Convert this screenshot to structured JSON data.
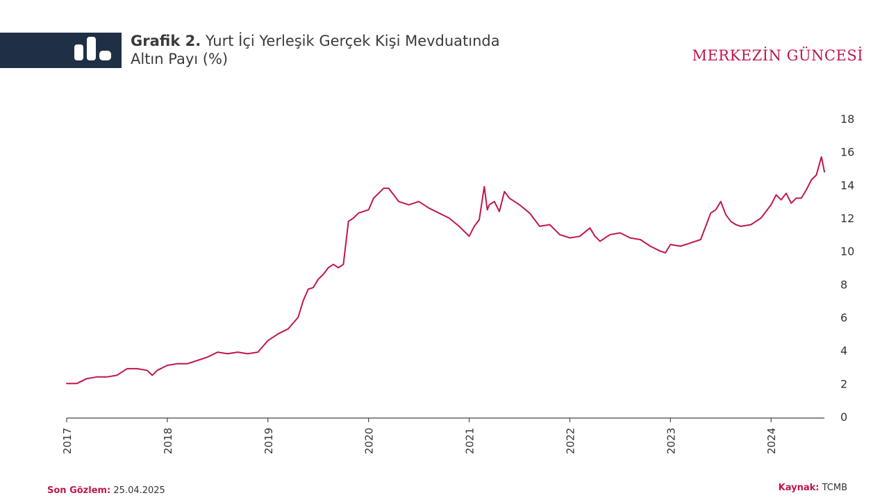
{
  "header": {
    "title_bold": "Grafik 2.",
    "title_line1": " Yurt İçi Yerleşik Gerçek Kişi Mevduatında",
    "title_line2": "Altın Payı (%)",
    "brand": "MERKEZİN GÜNCESİ",
    "icon": "bar-chart-icon",
    "bar_color": "#1f3044",
    "brand_color": "#c0164a"
  },
  "footer": {
    "last_obs_label": "Son Gözlem:",
    "last_obs_value": " 25.04.2025",
    "source_label": "Kaynak:",
    "source_value": " TCMB"
  },
  "chart_data": {
    "type": "line",
    "title": "Yurt İçi Yerleşik Gerçek Kişi Mevduatında Altın Payı (%)",
    "xlabel": "",
    "ylabel": "",
    "x_ticks": [
      "2017",
      "2018",
      "2019",
      "2020",
      "2021",
      "2022",
      "2023",
      "2024"
    ],
    "y_ticks": [
      "0",
      "2",
      "4",
      "6",
      "8",
      "10",
      "12",
      "14",
      "16",
      "18"
    ],
    "ylim": [
      0,
      18
    ],
    "xlim": [
      2017.0,
      2024.53
    ],
    "line_color": "#c0164a",
    "grid": false,
    "y_axis_side": "right",
    "series": [
      {
        "x": [
          2017.0,
          2017.1,
          2017.2,
          2017.3,
          2017.4,
          2017.5,
          2017.6,
          2017.7,
          2017.8,
          2017.85,
          2017.9,
          2018.0,
          2018.1,
          2018.2,
          2018.3,
          2018.4,
          2018.5,
          2018.6,
          2018.7,
          2018.8,
          2018.9,
          2019.0,
          2019.1,
          2019.2,
          2019.3,
          2019.35,
          2019.4,
          2019.45,
          2019.5,
          2019.55,
          2019.6,
          2019.65,
          2019.7,
          2019.75,
          2019.8,
          2019.85,
          2019.9,
          2020.0,
          2020.05,
          2020.1,
          2020.15,
          2020.2,
          2020.25,
          2020.3,
          2020.4,
          2020.5,
          2020.6,
          2020.7,
          2020.8,
          2020.9,
          2021.0,
          2021.05,
          2021.1,
          2021.15,
          2021.18,
          2021.2,
          2021.25,
          2021.3,
          2021.35,
          2021.4,
          2021.5,
          2021.6,
          2021.7,
          2021.8,
          2021.9,
          2022.0,
          2022.1,
          2022.2,
          2022.25,
          2022.3,
          2022.4,
          2022.5,
          2022.6,
          2022.7,
          2022.8,
          2022.9,
          2022.95,
          2023.0,
          2023.1,
          2023.2,
          2023.3,
          2023.4,
          2023.45,
          2023.5,
          2023.55,
          2023.6,
          2023.65,
          2023.7,
          2023.8,
          2023.9,
          2024.0,
          2024.05,
          2024.1,
          2024.15,
          2024.2,
          2024.25,
          2024.3,
          2024.35,
          2024.4,
          2024.45,
          2024.5,
          2024.53
        ],
        "values": [
          2.0,
          2.0,
          2.3,
          2.4,
          2.4,
          2.5,
          2.9,
          2.9,
          2.8,
          2.5,
          2.8,
          3.1,
          3.2,
          3.2,
          3.4,
          3.6,
          3.9,
          3.8,
          3.9,
          3.8,
          3.9,
          4.6,
          5.0,
          5.3,
          6.0,
          7.0,
          7.7,
          7.8,
          8.3,
          8.6,
          9.0,
          9.2,
          9.0,
          9.2,
          11.8,
          12.0,
          12.3,
          12.5,
          13.2,
          13.5,
          13.8,
          13.8,
          13.4,
          13.0,
          12.8,
          13.0,
          12.6,
          12.3,
          12.0,
          11.5,
          10.9,
          11.5,
          11.9,
          13.9,
          12.5,
          12.8,
          13.0,
          12.4,
          13.6,
          13.2,
          12.8,
          12.3,
          11.5,
          11.6,
          11.0,
          10.8,
          10.9,
          11.4,
          10.9,
          10.6,
          11.0,
          11.1,
          10.8,
          10.7,
          10.3,
          10.0,
          9.9,
          10.4,
          10.3,
          10.5,
          10.7,
          12.3,
          12.5,
          13.0,
          12.2,
          11.8,
          11.6,
          11.5,
          11.6,
          12.0,
          12.8,
          13.4,
          13.1,
          13.5,
          12.9,
          13.2,
          13.2,
          13.7,
          14.3,
          14.6,
          15.7,
          14.8
        ]
      }
    ]
  }
}
